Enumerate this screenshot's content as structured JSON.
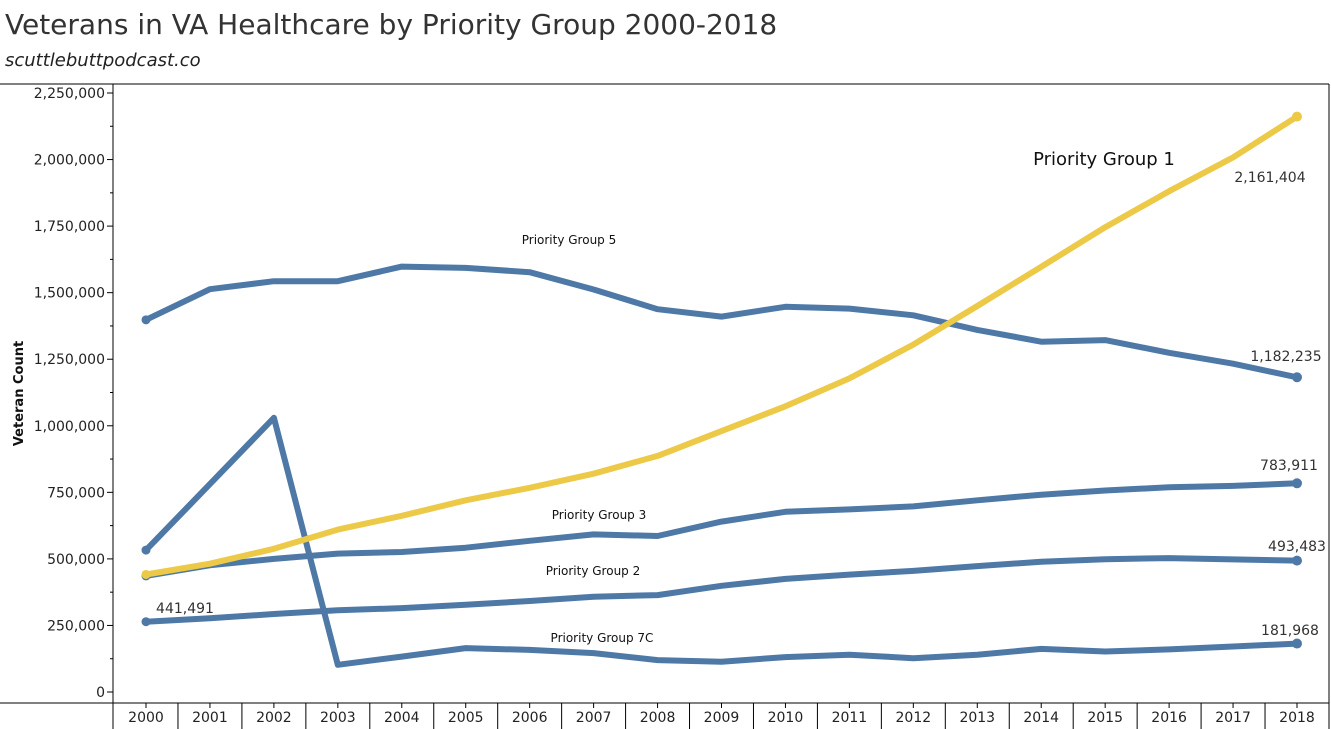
{
  "title": "Veterans in VA Healthcare by Priority Group 2000-2018",
  "subtitle": "scuttlebuttpodcast.co",
  "colors": {
    "blue": "#4e79a7",
    "yellow": "#edc948",
    "axis": "#000000"
  },
  "chart_data": {
    "type": "line",
    "ylabel": "Veteran Count",
    "xlabel": "",
    "ylim": [
      0,
      2250000
    ],
    "yticks": [
      0,
      250000,
      500000,
      750000,
      1000000,
      1250000,
      1500000,
      1750000,
      2000000,
      2250000
    ],
    "ytick_labels": [
      "0",
      "250,000",
      "500,000",
      "750,000",
      "1,000,000",
      "1,250,000",
      "1,500,000",
      "1,750,000",
      "2,000,000",
      "2,250,000"
    ],
    "x": [
      "2000",
      "2001",
      "2002",
      "2003",
      "2004",
      "2005",
      "2006",
      "2007",
      "2008",
      "2009",
      "2010",
      "2011",
      "2012",
      "2013",
      "2014",
      "2015",
      "2016",
      "2017",
      "2018"
    ],
    "grid": false,
    "legend": "none",
    "series": [
      {
        "name": "Priority Group 5",
        "color": "#4e79a7",
        "values": [
          1398000,
          1513000,
          1543000,
          1543000,
          1598000,
          1593000,
          1577000,
          1512000,
          1438000,
          1410000,
          1447000,
          1440000,
          1415000,
          1360000,
          1316000,
          1322000,
          1274000,
          1233000,
          1182235
        ]
      },
      {
        "name": "Priority Group 1",
        "color": "#edc948",
        "values": [
          441491,
          482000,
          538000,
          610000,
          662000,
          720000,
          767000,
          820000,
          887000,
          980000,
          1073000,
          1178000,
          1305000,
          1450000,
          1597000,
          1746000,
          1881000,
          2008000,
          2161404
        ]
      },
      {
        "name": "Priority Group 3",
        "color": "#4e79a7",
        "values": [
          436000,
          476000,
          500000,
          520000,
          526000,
          542000,
          568000,
          592000,
          586000,
          640000,
          677000,
          686000,
          697000,
          720000,
          741000,
          757000,
          769000,
          774000,
          783911
        ]
      },
      {
        "name": "Priority Group 2",
        "color": "#4e79a7",
        "values": [
          264000,
          277000,
          293000,
          307000,
          315000,
          328000,
          342000,
          358000,
          364000,
          399000,
          425000,
          441000,
          455000,
          473000,
          489000,
          499000,
          503000,
          498000,
          493483
        ]
      },
      {
        "name": "Priority Group 7C",
        "color": "#4e79a7",
        "values": [
          533000,
          781000,
          1030000,
          102000,
          133000,
          165000,
          158000,
          146000,
          120000,
          114000,
          131000,
          140000,
          127000,
          140000,
          162000,
          152000,
          160000,
          171000,
          181968
        ]
      }
    ],
    "annotations": [
      {
        "text": "Priority Group 1",
        "series": 1
      },
      {
        "text": "Priority Group 5",
        "series": 0
      },
      {
        "text": "Priority Group 3",
        "series": 2
      },
      {
        "text": "Priority Group 2",
        "series": 3
      },
      {
        "text": "Priority Group 7C",
        "series": 4
      }
    ],
    "data_labels": [
      "2,161,404",
      "1,182,235",
      "783,911",
      "493,483",
      "181,968",
      "441,491"
    ]
  }
}
